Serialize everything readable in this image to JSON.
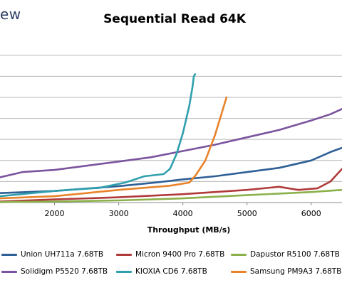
{
  "brand": "ew",
  "chart_data": {
    "type": "line",
    "title": "Sequential Read 64K",
    "xlabel": "Throughput (MB/s)",
    "ylabel": "",
    "xlim": [
      1150,
      6480
    ],
    "ylim": [
      0,
      7.6
    ],
    "x_ticks": [
      2000,
      3000,
      4000,
      5000,
      6000
    ],
    "x_tick_labels": [
      "2000",
      "3000",
      "4000",
      "5000",
      "6000"
    ],
    "grid": "horizontal",
    "legend_position": "bottom",
    "series": [
      {
        "name": "Union UH711a 7.68TB",
        "color": "#2e5f95",
        "points": [
          [
            1150,
            0.45
          ],
          [
            2000,
            0.55
          ],
          [
            3000,
            0.78
          ],
          [
            3600,
            0.96
          ],
          [
            4000,
            1.1
          ],
          [
            4500,
            1.25
          ],
          [
            5000,
            1.45
          ],
          [
            5500,
            1.65
          ],
          [
            6000,
            2.0
          ],
          [
            6300,
            2.4
          ],
          [
            6480,
            2.6
          ]
        ]
      },
      {
        "name": "Micron 9400 Pro 7.68TB",
        "color": "#b03a3a",
        "points": [
          [
            1150,
            0.05
          ],
          [
            2000,
            0.15
          ],
          [
            3000,
            0.25
          ],
          [
            4000,
            0.4
          ],
          [
            5000,
            0.6
          ],
          [
            5500,
            0.75
          ],
          [
            5800,
            0.6
          ],
          [
            6100,
            0.68
          ],
          [
            6300,
            1.0
          ],
          [
            6480,
            1.6
          ]
        ]
      },
      {
        "name": "Dapustor R5100 7.68TB",
        "color": "#8bb04a",
        "points": [
          [
            1150,
            0.02
          ],
          [
            2000,
            0.05
          ],
          [
            3000,
            0.1
          ],
          [
            4000,
            0.2
          ],
          [
            5000,
            0.35
          ],
          [
            6000,
            0.5
          ],
          [
            6480,
            0.6
          ]
        ]
      },
      {
        "name": "Solidigm P5520 7.68TB",
        "color": "#7a549e",
        "points": [
          [
            1150,
            1.2
          ],
          [
            1500,
            1.45
          ],
          [
            2000,
            1.55
          ],
          [
            2500,
            1.75
          ],
          [
            3000,
            1.95
          ],
          [
            3500,
            2.15
          ],
          [
            4000,
            2.45
          ],
          [
            4500,
            2.75
          ],
          [
            5000,
            3.1
          ],
          [
            5500,
            3.45
          ],
          [
            6000,
            3.9
          ],
          [
            6300,
            4.2
          ],
          [
            6480,
            4.45
          ]
        ]
      },
      {
        "name": "KIOXIA CD6 7.68TB",
        "color": "#2f9fad",
        "points": [
          [
            1150,
            0.3
          ],
          [
            2000,
            0.55
          ],
          [
            2700,
            0.7
          ],
          [
            3100,
            0.95
          ],
          [
            3400,
            1.25
          ],
          [
            3700,
            1.35
          ],
          [
            3800,
            1.6
          ],
          [
            3900,
            2.3
          ],
          [
            4000,
            3.3
          ],
          [
            4100,
            4.6
          ],
          [
            4150,
            5.5
          ],
          [
            4170,
            6.0
          ],
          [
            4190,
            6.1
          ]
        ]
      },
      {
        "name": "Samsung PM9A3 7.68TB",
        "color": "#e8832a",
        "points": [
          [
            1150,
            0.2
          ],
          [
            2000,
            0.3
          ],
          [
            3000,
            0.6
          ],
          [
            3800,
            0.8
          ],
          [
            4100,
            0.95
          ],
          [
            4200,
            1.3
          ],
          [
            4350,
            2.0
          ],
          [
            4500,
            3.2
          ],
          [
            4600,
            4.2
          ],
          [
            4680,
            5.0
          ]
        ]
      }
    ]
  }
}
